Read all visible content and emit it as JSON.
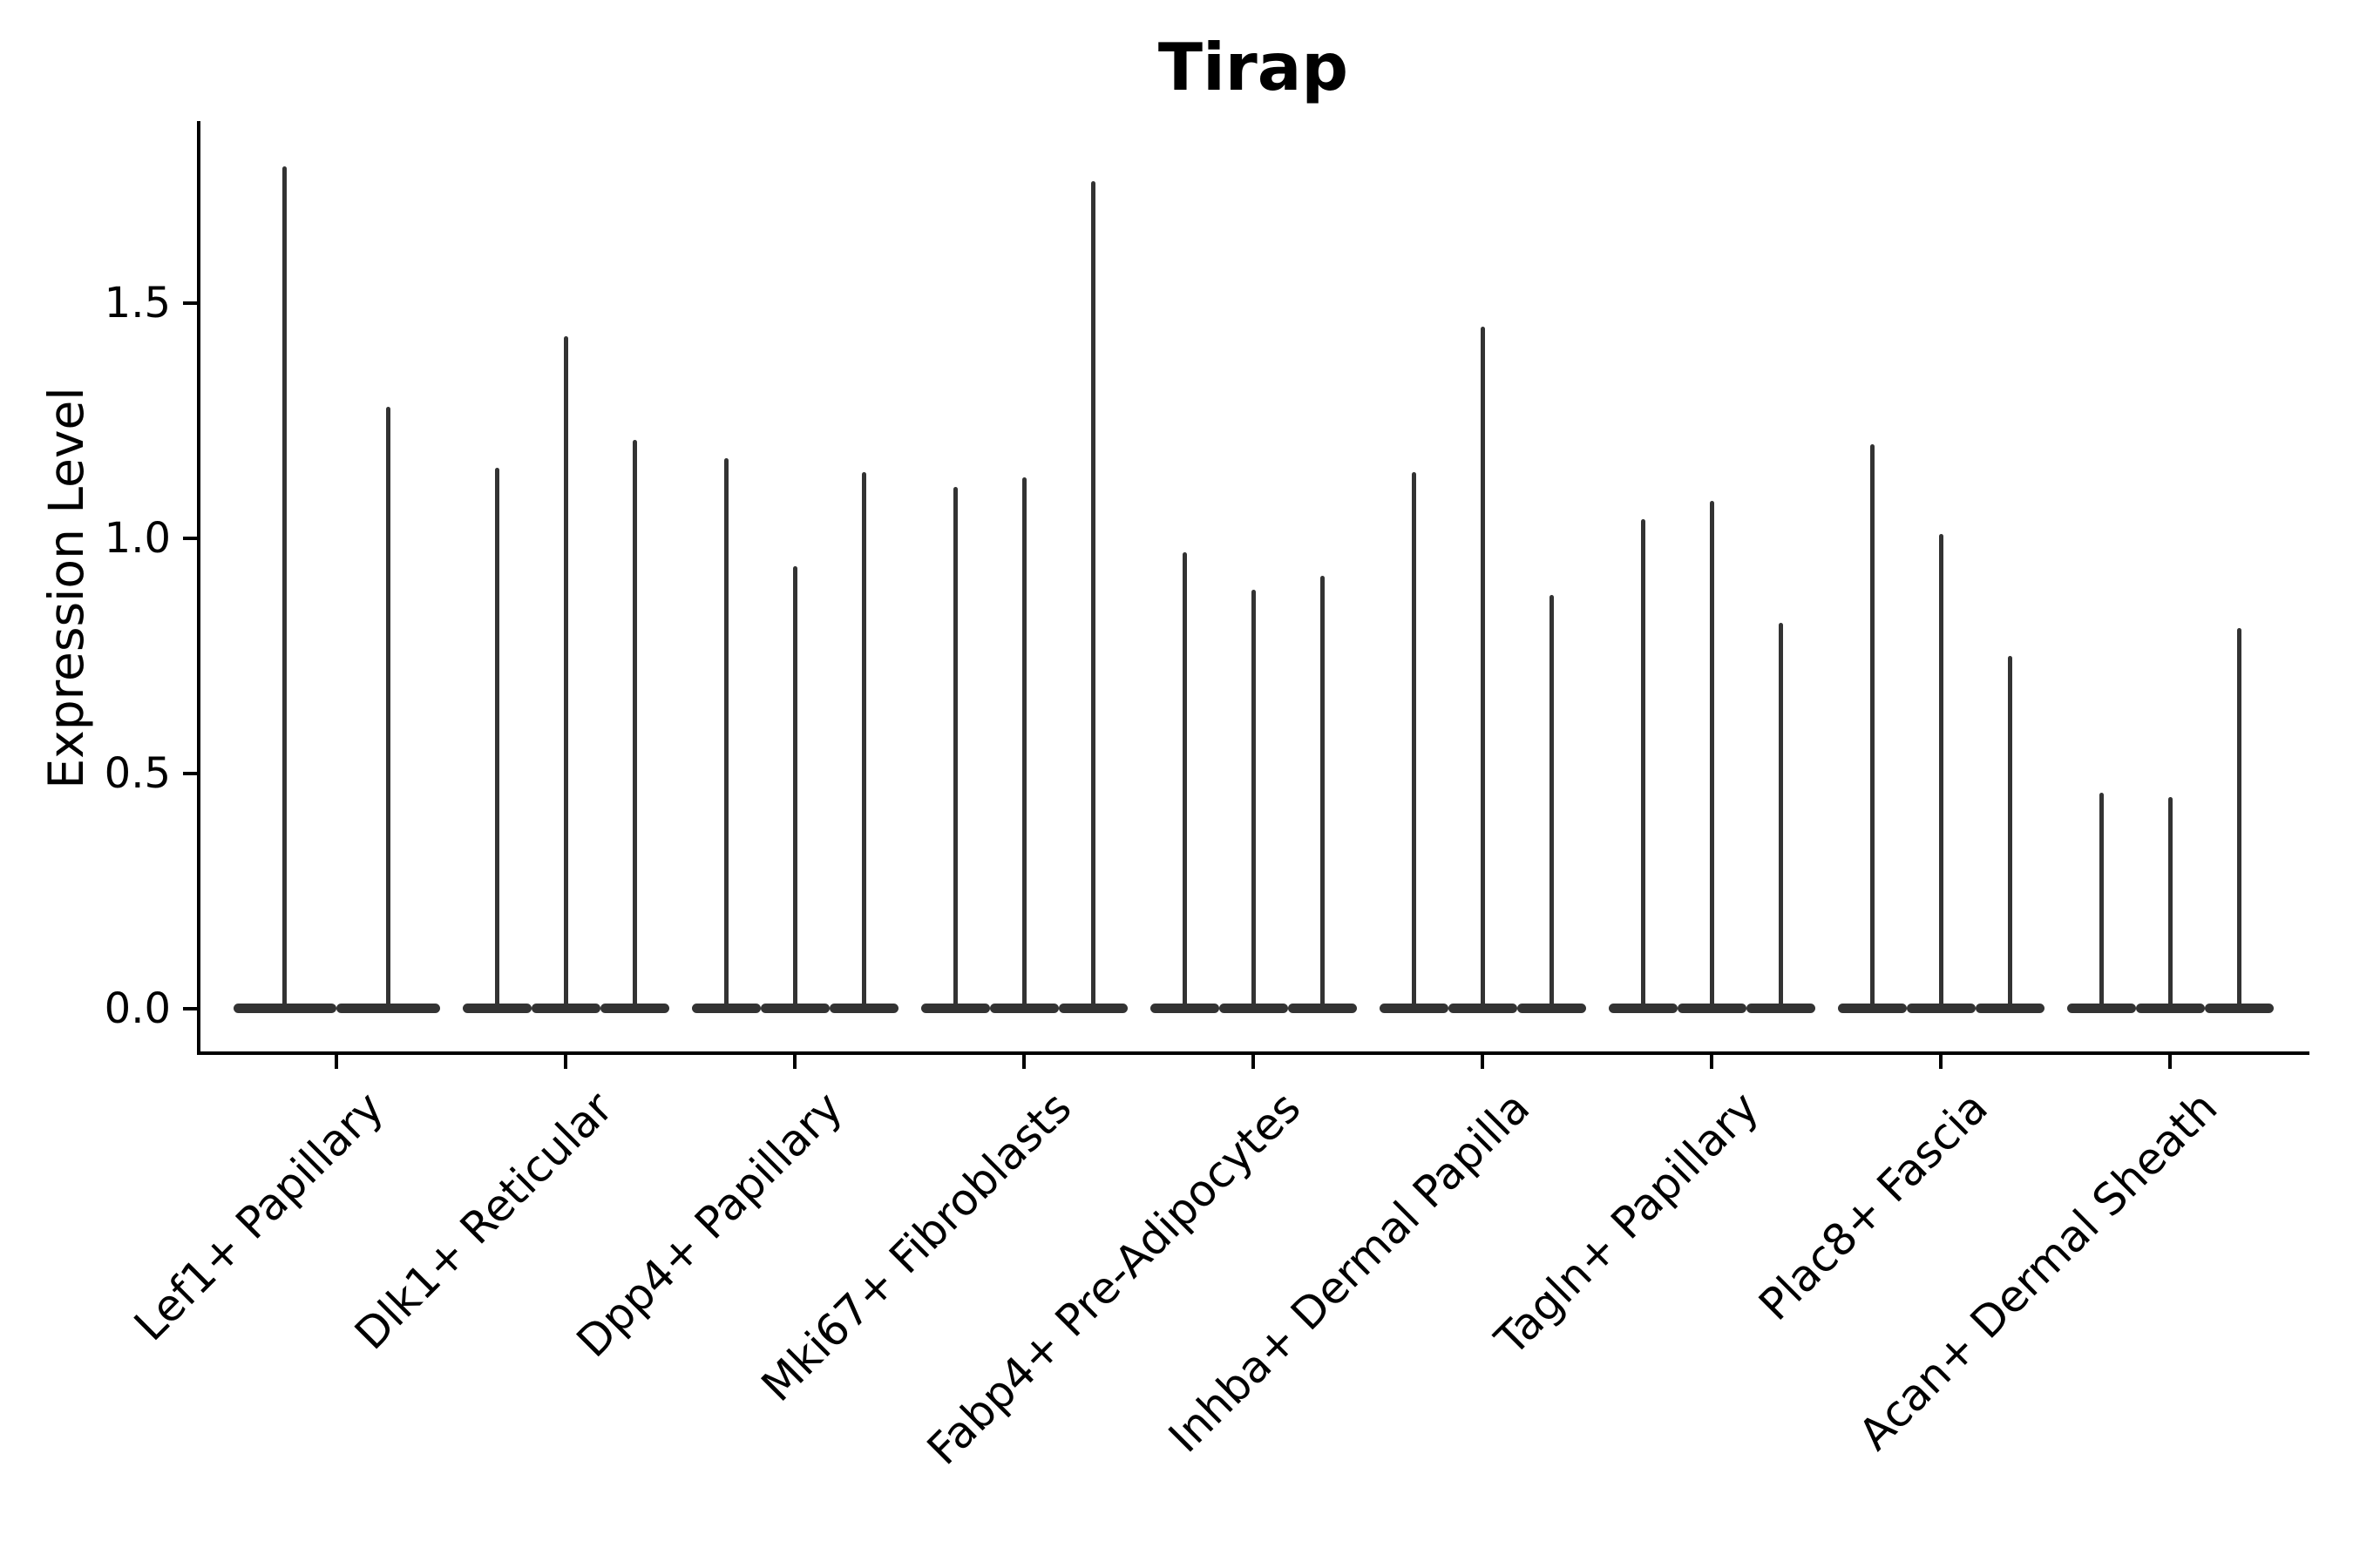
{
  "chart_data": {
    "type": "violin",
    "title": "Tirap",
    "xlabel": "",
    "ylabel": "Expression Level",
    "grid": false,
    "legend": "none",
    "background_color": "#ffffff",
    "axis_color": "#000000",
    "violin_color": "#333333",
    "ylim": [
      0,
      1.89
    ],
    "yticks": [
      0.0,
      0.5,
      1.0,
      1.5
    ],
    "ytick_labels": [
      "0.0",
      "0.5",
      "1.0",
      "1.5"
    ],
    "categories": [
      "Lef1+ Papillary",
      "Dlk1+ Reticular",
      "Dpp4+ Papillary",
      "Mki67+ Fibroblasts",
      "Fabp4+ Pre-Adipocytes",
      "Inhba+ Dermal Papilla",
      "Tagln+ Papillary",
      "Plac8+ Fascia",
      "Acan+ Dermal Sheath"
    ],
    "groups": [
      {
        "category": "Lef1+ Papillary",
        "violin_peaks": [
          1.79,
          1.28
        ]
      },
      {
        "category": "Dlk1+ Reticular",
        "violin_peaks": [
          1.15,
          1.43,
          1.21
        ]
      },
      {
        "category": "Dpp4+ Papillary",
        "violin_peaks": [
          1.17,
          0.94,
          1.14
        ]
      },
      {
        "category": "Mki67+ Fibroblasts",
        "violin_peaks": [
          1.11,
          1.13,
          1.76
        ]
      },
      {
        "category": "Fabp4+ Pre-Adipocytes",
        "violin_peaks": [
          0.97,
          0.89,
          0.92
        ]
      },
      {
        "category": "Inhba+ Dermal Papilla",
        "violin_peaks": [
          1.14,
          1.45,
          0.88
        ]
      },
      {
        "category": "Tagln+ Papillary",
        "violin_peaks": [
          1.04,
          1.08,
          0.82
        ]
      },
      {
        "category": "Plac8+ Fascia",
        "violin_peaks": [
          1.2,
          1.01,
          0.75
        ]
      },
      {
        "category": "Acan+ Dermal Sheath",
        "violin_peaks": [
          0.46,
          0.45,
          0.81
        ]
      }
    ],
    "notes": "Each violin is collapsed at expression 0 into a flat horizontal base with a single thin spike rising to its maximum value."
  }
}
